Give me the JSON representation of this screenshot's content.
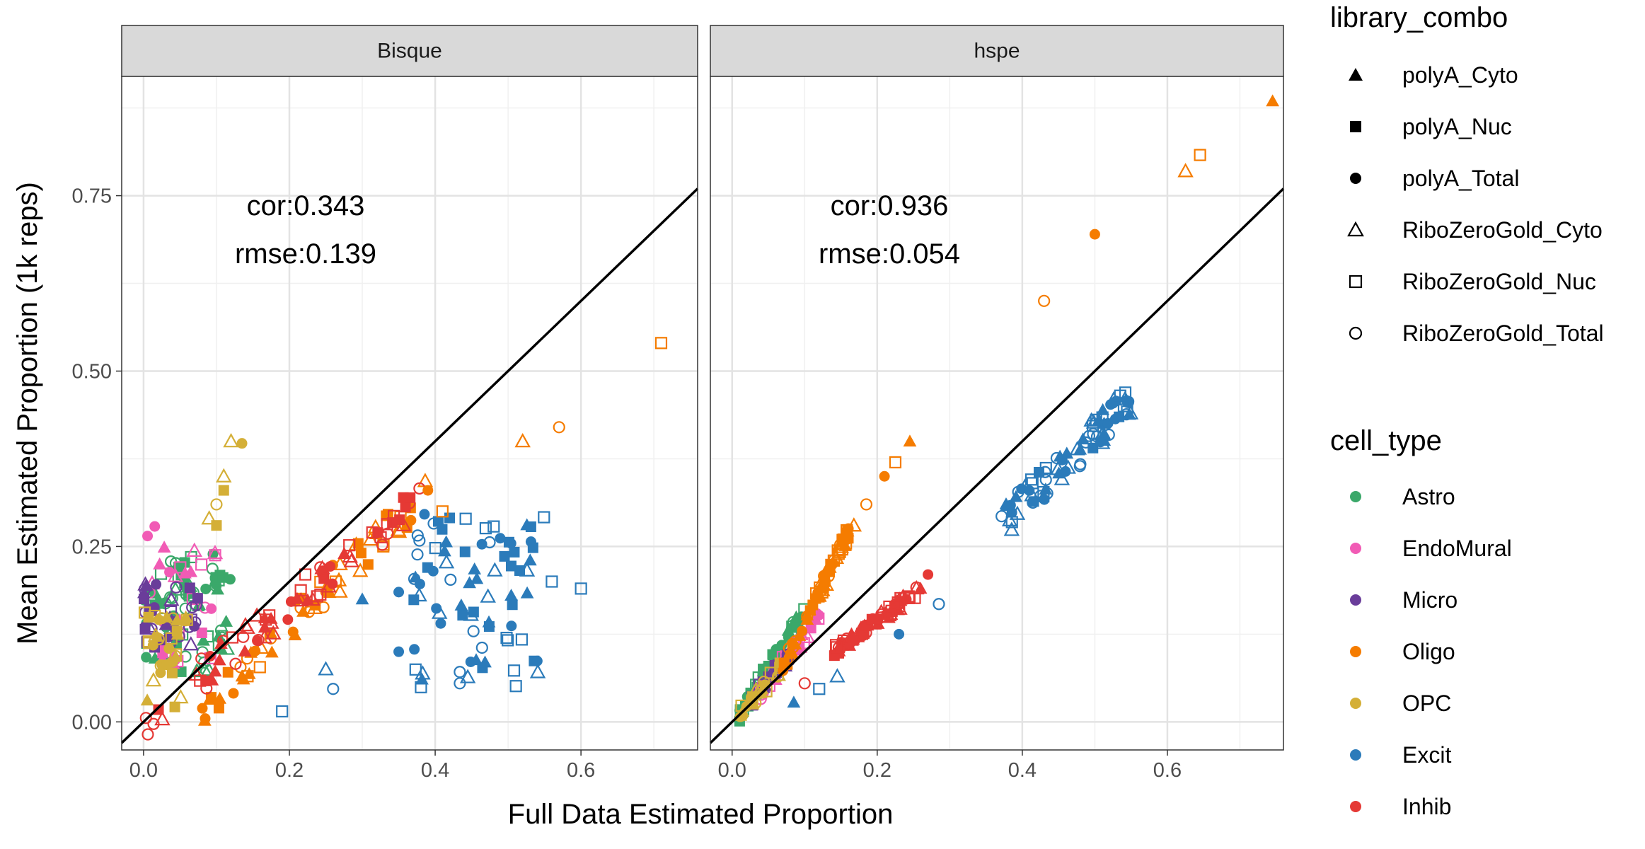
{
  "chart_data": {
    "type": "scatter",
    "xlabel": "Full Data Estimated Proportion",
    "ylabel": "Mean Estimated Proportion (1k reps)",
    "xlim": [
      -0.03,
      0.76
    ],
    "ylim": [
      -0.04,
      0.92
    ],
    "x_ticks": [
      0.0,
      0.2,
      0.4,
      0.6
    ],
    "x_tick_labels": [
      "0.0",
      "0.2",
      "0.4",
      "0.6"
    ],
    "y_ticks": [
      0.0,
      0.25,
      0.5,
      0.75
    ],
    "y_tick_labels": [
      "0.00",
      "0.25",
      "0.50",
      "0.75"
    ],
    "grid": true,
    "reference_line": "y = x",
    "legend_placement": "right",
    "legends": [
      {
        "title": "library_combo",
        "items": [
          {
            "label": "polyA_Cyto",
            "shape": "triangle-filled"
          },
          {
            "label": "polyA_Nuc",
            "shape": "square-filled"
          },
          {
            "label": "polyA_Total",
            "shape": "circle-filled"
          },
          {
            "label": "RiboZeroGold_Cyto",
            "shape": "triangle-open"
          },
          {
            "label": "RiboZeroGold_Nuc",
            "shape": "square-open"
          },
          {
            "label": "RiboZeroGold_Total",
            "shape": "circle-open"
          }
        ]
      },
      {
        "title": "cell_type",
        "items": [
          {
            "label": "Astro",
            "color": "#3BA86A"
          },
          {
            "label": "EndoMural",
            "color": "#F15BB5"
          },
          {
            "label": "Micro",
            "color": "#6A3D9A"
          },
          {
            "label": "Oligo",
            "color": "#F57C00"
          },
          {
            "label": "OPC",
            "color": "#D4AF37"
          },
          {
            "label": "Excit",
            "color": "#2B7BBA"
          },
          {
            "label": "Inhib",
            "color": "#E53935"
          }
        ]
      }
    ],
    "panels": [
      {
        "title": "Bisque",
        "stats": [
          "cor:0.343",
          "rmse:0.139"
        ],
        "clusters": [
          {
            "cell": "Astro",
            "n": 70,
            "x": [
              0.0,
              0.12
            ],
            "y": [
              0.07,
              0.24
            ]
          },
          {
            "cell": "EndoMural",
            "n": 30,
            "x": [
              0.0,
              0.1
            ],
            "y": [
              0.08,
              0.28
            ]
          },
          {
            "cell": "Micro",
            "n": 40,
            "x": [
              0.0,
              0.08
            ],
            "y": [
              0.1,
              0.2
            ]
          },
          {
            "cell": "OPC",
            "n": 35,
            "x": [
              0.0,
              0.06
            ],
            "y": [
              0.02,
              0.16
            ]
          },
          {
            "cell": "Oligo",
            "n": 60,
            "x": [
              0.08,
              0.4
            ],
            "y": [
              0.02,
              0.34
            ],
            "trend": "diagonal"
          },
          {
            "cell": "Inhib",
            "n": 70,
            "x": [
              0.0,
              0.38
            ],
            "y": [
              0.0,
              0.32
            ],
            "trend": "diagonal"
          },
          {
            "cell": "Excit",
            "n": 80,
            "x": [
              0.37,
              0.55
            ],
            "y": [
              0.04,
              0.3
            ]
          }
        ],
        "points": [
          {
            "cell": "OPC",
            "lib": "RiboZeroGold_Cyto",
            "x": 0.12,
            "y": 0.4
          },
          {
            "cell": "OPC",
            "lib": "polyA_Total",
            "x": 0.135,
            "y": 0.397
          },
          {
            "cell": "OPC",
            "lib": "RiboZeroGold_Cyto",
            "x": 0.11,
            "y": 0.35
          },
          {
            "cell": "OPC",
            "lib": "polyA_Nuc",
            "x": 0.11,
            "y": 0.33
          },
          {
            "cell": "OPC",
            "lib": "RiboZeroGold_Total",
            "x": 0.1,
            "y": 0.31
          },
          {
            "cell": "OPC",
            "lib": "RiboZeroGold_Cyto",
            "x": 0.09,
            "y": 0.29
          },
          {
            "cell": "OPC",
            "lib": "polyA_Nuc",
            "x": 0.1,
            "y": 0.28
          },
          {
            "cell": "Oligo",
            "lib": "RiboZeroGold_Nuc",
            "x": 0.71,
            "y": 0.54
          },
          {
            "cell": "Oligo",
            "lib": "RiboZeroGold_Total",
            "x": 0.57,
            "y": 0.42
          },
          {
            "cell": "Oligo",
            "lib": "RiboZeroGold_Cyto",
            "x": 0.52,
            "y": 0.4
          },
          {
            "cell": "Oligo",
            "lib": "polyA_Total",
            "x": 0.39,
            "y": 0.33
          },
          {
            "cell": "Oligo",
            "lib": "RiboZeroGold_Nuc",
            "x": 0.41,
            "y": 0.3
          },
          {
            "cell": "Excit",
            "lib": "RiboZeroGold_Nuc",
            "x": 0.56,
            "y": 0.2
          },
          {
            "cell": "Excit",
            "lib": "RiboZeroGold_Nuc",
            "x": 0.6,
            "y": 0.19
          },
          {
            "cell": "Excit",
            "lib": "RiboZeroGold_Nuc",
            "x": 0.19,
            "y": 0.015
          },
          {
            "cell": "Excit",
            "lib": "RiboZeroGold_Cyto",
            "x": 0.25,
            "y": 0.075
          },
          {
            "cell": "Excit",
            "lib": "RiboZeroGold_Total",
            "x": 0.26,
            "y": 0.047
          },
          {
            "cell": "Excit",
            "lib": "polyA_Total",
            "x": 0.35,
            "y": 0.185
          },
          {
            "cell": "Excit",
            "lib": "polyA_Cyto",
            "x": 0.3,
            "y": 0.175
          },
          {
            "cell": "Excit",
            "lib": "polyA_Total",
            "x": 0.35,
            "y": 0.1
          }
        ]
      },
      {
        "title": "hspe",
        "stats": [
          "cor:0.936",
          "rmse:0.054"
        ],
        "clusters": [
          {
            "cell": "Astro",
            "n": 55,
            "x": [
              0.01,
              0.1
            ],
            "y": [
              0.01,
              0.16
            ],
            "trend": "steep"
          },
          {
            "cell": "EndoMural",
            "n": 30,
            "x": [
              0.03,
              0.12
            ],
            "y": [
              0.03,
              0.15
            ],
            "trend": "steep"
          },
          {
            "cell": "Micro",
            "n": 20,
            "x": [
              0.02,
              0.08
            ],
            "y": [
              0.02,
              0.1
            ],
            "trend": "steep"
          },
          {
            "cell": "OPC",
            "n": 25,
            "x": [
              0.01,
              0.07
            ],
            "y": [
              0.01,
              0.08
            ],
            "trend": "steep"
          },
          {
            "cell": "Oligo",
            "n": 70,
            "x": [
              0.07,
              0.17
            ],
            "y": [
              0.08,
              0.29
            ],
            "trend": "steep"
          },
          {
            "cell": "Inhib",
            "n": 70,
            "x": [
              0.14,
              0.26
            ],
            "y": [
              0.1,
              0.19
            ],
            "trend": "shallow"
          },
          {
            "cell": "Excit",
            "n": 80,
            "x": [
              0.37,
              0.55
            ],
            "y": [
              0.28,
              0.46
            ],
            "trend": "diagonal"
          }
        ],
        "points": [
          {
            "cell": "Oligo",
            "lib": "polyA_Cyto",
            "x": 0.745,
            "y": 0.885
          },
          {
            "cell": "Oligo",
            "lib": "RiboZeroGold_Nuc",
            "x": 0.645,
            "y": 0.808
          },
          {
            "cell": "Oligo",
            "lib": "RiboZeroGold_Cyto",
            "x": 0.625,
            "y": 0.785
          },
          {
            "cell": "Oligo",
            "lib": "polyA_Total",
            "x": 0.5,
            "y": 0.695
          },
          {
            "cell": "Oligo",
            "lib": "RiboZeroGold_Total",
            "x": 0.43,
            "y": 0.6
          },
          {
            "cell": "Oligo",
            "lib": "polyA_Cyto",
            "x": 0.245,
            "y": 0.4
          },
          {
            "cell": "Oligo",
            "lib": "RiboZeroGold_Nuc",
            "x": 0.225,
            "y": 0.37
          },
          {
            "cell": "Oligo",
            "lib": "polyA_Total",
            "x": 0.21,
            "y": 0.35
          },
          {
            "cell": "Oligo",
            "lib": "RiboZeroGold_Total",
            "x": 0.185,
            "y": 0.31
          },
          {
            "cell": "Inhib",
            "lib": "polyA_Total",
            "x": 0.27,
            "y": 0.21
          },
          {
            "cell": "Excit",
            "lib": "RiboZeroGold_Total",
            "x": 0.285,
            "y": 0.168
          },
          {
            "cell": "Excit",
            "lib": "polyA_Total",
            "x": 0.23,
            "y": 0.125
          },
          {
            "cell": "Excit",
            "lib": "RiboZeroGold_Cyto",
            "x": 0.145,
            "y": 0.065
          },
          {
            "cell": "Excit",
            "lib": "RiboZeroGold_Nuc",
            "x": 0.12,
            "y": 0.047
          },
          {
            "cell": "Inhib",
            "lib": "RiboZeroGold_Total",
            "x": 0.1,
            "y": 0.055
          },
          {
            "cell": "Excit",
            "lib": "polyA_Cyto",
            "x": 0.085,
            "y": 0.028
          },
          {
            "cell": "Excit",
            "lib": "RiboZeroGold_Nuc",
            "x": 0.535,
            "y": 0.465
          },
          {
            "cell": "Excit",
            "lib": "RiboZeroGold_Nuc",
            "x": 0.54,
            "y": 0.45
          }
        ]
      }
    ]
  }
}
